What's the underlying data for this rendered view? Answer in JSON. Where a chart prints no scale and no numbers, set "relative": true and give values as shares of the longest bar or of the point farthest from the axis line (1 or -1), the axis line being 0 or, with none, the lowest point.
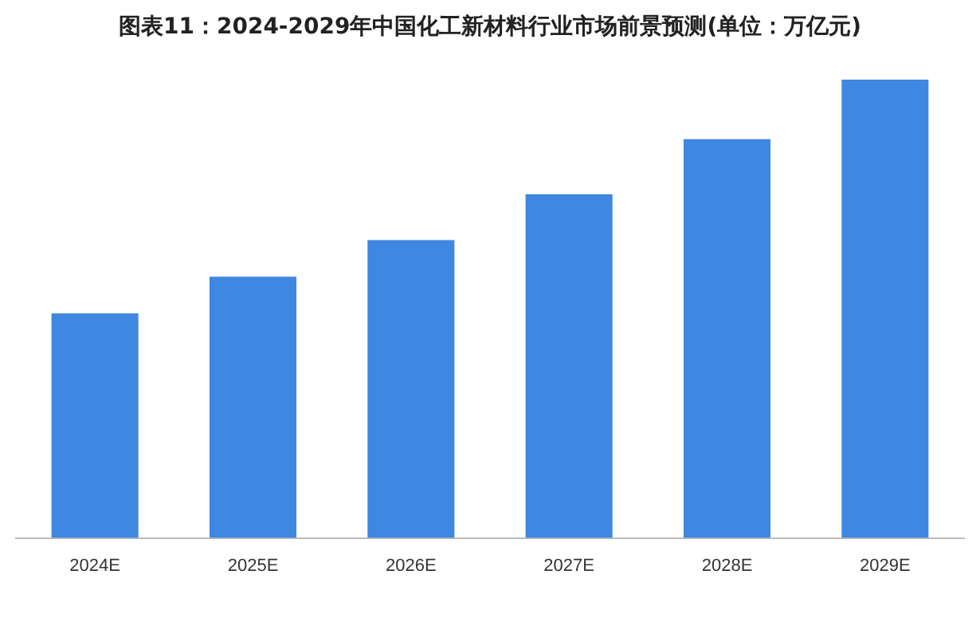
{
  "chart_data": {
    "type": "bar",
    "title": "图表11：2024-2029年中国化工新材料行业市场前景预测(单位：万亿元)",
    "categories": [
      "2024E",
      "2025E",
      "2026E",
      "2027E",
      "2028E",
      "2029E"
    ],
    "values": [
      0.49,
      0.57,
      0.65,
      0.75,
      0.87,
      1
    ],
    "color": "#3f87e0",
    "relative": true,
    "grid": false,
    "legend": false
  }
}
